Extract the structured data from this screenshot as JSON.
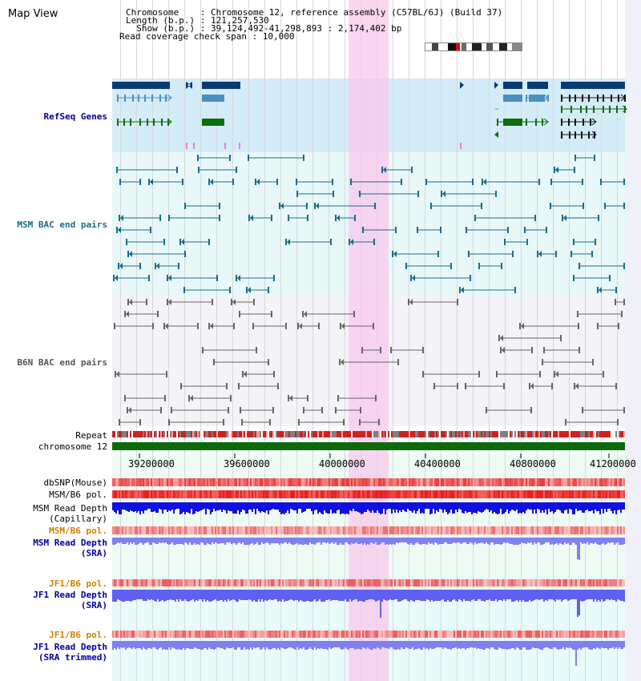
{
  "title": "Map View",
  "info": {
    "chromosome": "Chromosome    : Chromosome 12, reference assembly (C57BL/6J) (Build 37)",
    "length": "Length (b.p.) : 121,257,530",
    "show": "  Show (b.p.) : 39,124,492-41,298,893 : 2,174,402 bp",
    "coverage": "Read coverage check span : 10,000"
  },
  "tracks": {
    "refseq": "RefSeq Genes",
    "msm_bac": "MSM BAC end pairs",
    "b6n_bac": "B6N BAC end pairs",
    "repeat": "Repeat",
    "chromosome": "chromosome 12",
    "dbsnp": "dbSNP(Mouse)",
    "msm_pol_1": "MSM/B6 pol.",
    "msm_depth_cap_1": "MSM Read Depth",
    "msm_depth_cap_2": "(Capillary)",
    "msm_pol_2": "MSM/B6 pol.",
    "msm_depth_sra_1": "MSM Read Depth",
    "msm_depth_sra_2": "(SRA)",
    "jf1_pol_1": "JF1/B6 pol.",
    "jf1_depth_sra_1": "JF1 Read Depth",
    "jf1_depth_sra_2": "(SRA)",
    "jf1_pol_2": "JF1/B6 pol.",
    "jf1_depth_trim_1": "JF1 Read Depth",
    "jf1_depth_trim_2": "(SRA trimmed)"
  },
  "axis": {
    "ticks": [
      "39200000",
      "39600000",
      "40000000",
      "40400000",
      "40800000",
      "41200000"
    ]
  },
  "colors": {
    "refseq_dark": "#0b3a73",
    "refseq_mid": "#4a8fc0",
    "refseq_green": "#0a6e0a",
    "msm_bac": "#1a6b8a",
    "b6n_bac": "#666666",
    "highlight": "#f8d8f0",
    "chrom_bar": "#0b6b0b",
    "depth_blue": "#2020e0",
    "depth_light": "#7070f0",
    "label_orange": "#d08000",
    "label_blue": "#0000a0"
  }
}
